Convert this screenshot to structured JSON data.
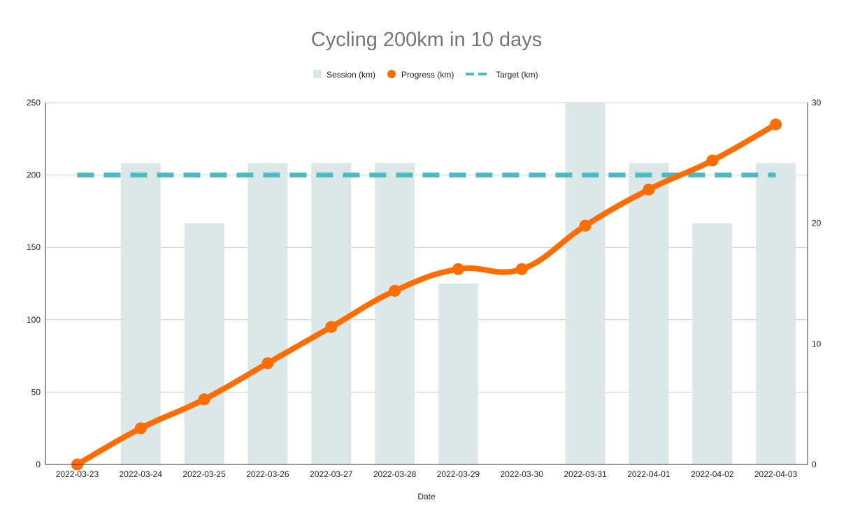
{
  "chart_data": {
    "type": "bar+line",
    "title": "Cycling 200km in 10 days",
    "xlabel": "Date",
    "ylabel": "",
    "y2label": "",
    "categories": [
      "2022-03-23",
      "2022-03-24",
      "2022-03-25",
      "2022-03-26",
      "2022-03-27",
      "2022-03-28",
      "2022-03-29",
      "2022-03-30",
      "2022-03-31",
      "2022-04-01",
      "2022-04-02",
      "2022-04-03"
    ],
    "ylim": [
      0,
      250
    ],
    "y2lim": [
      0,
      30
    ],
    "y_ticks": [
      "0",
      "50",
      "100",
      "150",
      "200",
      "250"
    ],
    "y2_ticks": [
      "0",
      "10",
      "20",
      "30"
    ],
    "grid": true,
    "legend_position": "top-center",
    "series": [
      {
        "name": "Session (km)",
        "kind": "bar",
        "axis": "right",
        "color": "#dce7e8",
        "values": [
          0,
          25,
          20,
          25,
          25,
          25,
          15,
          0,
          30,
          25,
          20,
          25
        ]
      },
      {
        "name": "Progress (km)",
        "kind": "line",
        "axis": "left",
        "color": "#ff6d01",
        "values": [
          0,
          25,
          45,
          70,
          95,
          120,
          135,
          135,
          165,
          190,
          210,
          235
        ]
      },
      {
        "name": "Target (km)",
        "kind": "dashed-line",
        "axis": "left",
        "color": "#46bdc6",
        "values": [
          200,
          200,
          200,
          200,
          200,
          200,
          200,
          200,
          200,
          200,
          200,
          200
        ]
      }
    ]
  }
}
